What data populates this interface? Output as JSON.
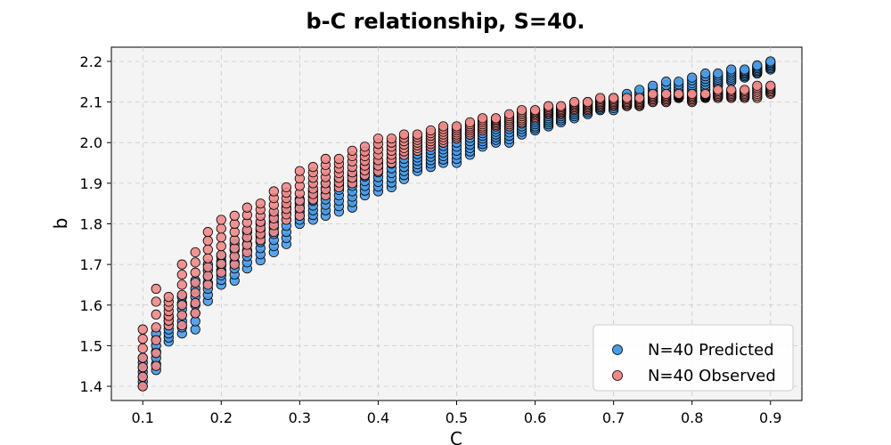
{
  "chart_data": {
    "type": "scatter",
    "title": "b-C relationship, S=40.",
    "xlabel": "C",
    "ylabel": "b",
    "xlim": [
      0.06,
      0.94
    ],
    "ylim": [
      1.365,
      2.235
    ],
    "xticks": [
      "0.1",
      "0.2",
      "0.3",
      "0.4",
      "0.5",
      "0.6",
      "0.7",
      "0.8",
      "0.9"
    ],
    "yticks": [
      "1.4",
      "1.5",
      "1.6",
      "1.7",
      "1.8",
      "1.9",
      "2.0",
      "2.1",
      "2.2"
    ],
    "grid": true,
    "legend_position": "bottom-right",
    "x": [
      0.1,
      0.117,
      0.133,
      0.15,
      0.167,
      0.183,
      0.2,
      0.217,
      0.233,
      0.25,
      0.267,
      0.283,
      0.3,
      0.317,
      0.333,
      0.35,
      0.367,
      0.383,
      0.4,
      0.417,
      0.433,
      0.45,
      0.467,
      0.483,
      0.5,
      0.517,
      0.533,
      0.55,
      0.567,
      0.583,
      0.6,
      0.617,
      0.633,
      0.65,
      0.667,
      0.683,
      0.7,
      0.717,
      0.733,
      0.75,
      0.767,
      0.783,
      0.8,
      0.817,
      0.833,
      0.85,
      0.867,
      0.883,
      0.9
    ],
    "series": [
      {
        "name": "N=40 Predicted",
        "color": "#4a9be8",
        "min": [
          1.4,
          1.44,
          1.51,
          1.53,
          1.54,
          1.61,
          1.65,
          1.66,
          1.69,
          1.71,
          1.73,
          1.75,
          1.8,
          1.81,
          1.82,
          1.83,
          1.84,
          1.87,
          1.88,
          1.89,
          1.91,
          1.93,
          1.94,
          1.95,
          1.95,
          1.97,
          1.99,
          2.0,
          2.0,
          2.02,
          2.03,
          2.04,
          2.05,
          2.06,
          2.07,
          2.08,
          2.08,
          2.09,
          2.09,
          2.1,
          2.1,
          2.11,
          2.12,
          2.13,
          2.14,
          2.15,
          2.16,
          2.17,
          2.18
        ],
        "max": [
          1.47,
          1.53,
          1.57,
          1.62,
          1.66,
          1.7,
          1.72,
          1.75,
          1.78,
          1.8,
          1.82,
          1.84,
          1.86,
          1.88,
          1.9,
          1.91,
          1.92,
          1.94,
          1.95,
          1.96,
          1.97,
          1.98,
          1.99,
          2.0,
          2.01,
          2.02,
          2.03,
          2.04,
          2.05,
          2.06,
          2.06,
          2.07,
          2.08,
          2.09,
          2.1,
          2.1,
          2.11,
          2.12,
          2.13,
          2.14,
          2.15,
          2.15,
          2.16,
          2.17,
          2.17,
          2.18,
          2.18,
          2.19,
          2.2
        ]
      },
      {
        "name": "N=40 Observed",
        "color": "#f08a8a",
        "min": [
          1.4,
          1.45,
          1.55,
          1.55,
          1.58,
          1.65,
          1.68,
          1.7,
          1.73,
          1.76,
          1.78,
          1.81,
          1.82,
          1.86,
          1.87,
          1.89,
          1.9,
          1.92,
          1.93,
          1.95,
          1.97,
          1.98,
          1.99,
          2.0,
          2.01,
          2.02,
          2.03,
          2.04,
          2.04,
          2.05,
          2.06,
          2.07,
          2.07,
          2.08,
          2.08,
          2.09,
          2.09,
          2.09,
          2.09,
          2.1,
          2.1,
          2.11,
          2.1,
          2.11,
          2.11,
          2.11,
          2.11,
          2.11,
          2.12
        ],
        "max": [
          1.54,
          1.64,
          1.62,
          1.7,
          1.73,
          1.78,
          1.81,
          1.82,
          1.84,
          1.85,
          1.88,
          1.89,
          1.93,
          1.94,
          1.96,
          1.96,
          1.98,
          1.99,
          2.01,
          2.01,
          2.02,
          2.02,
          2.03,
          2.04,
          2.04,
          2.05,
          2.06,
          2.06,
          2.07,
          2.08,
          2.08,
          2.09,
          2.09,
          2.1,
          2.1,
          2.11,
          2.11,
          2.11,
          2.11,
          2.12,
          2.12,
          2.12,
          2.12,
          2.12,
          2.13,
          2.13,
          2.13,
          2.14,
          2.14
        ]
      }
    ]
  }
}
